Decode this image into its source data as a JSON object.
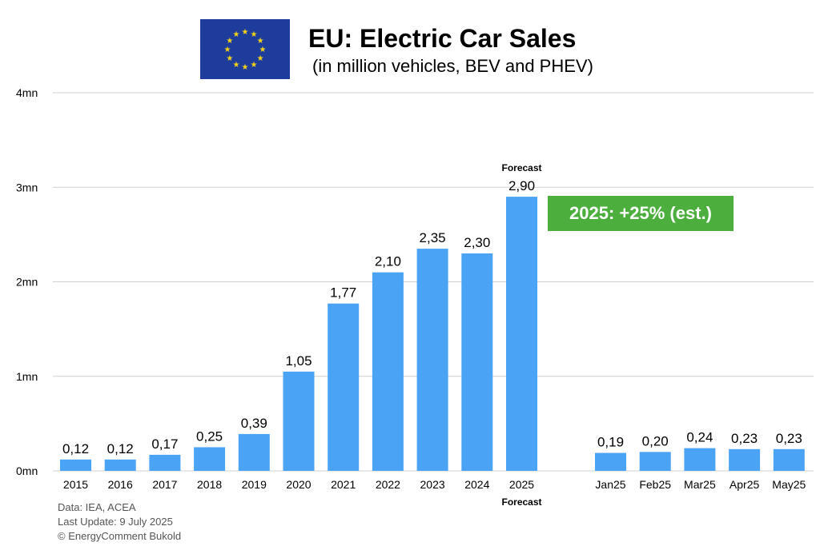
{
  "header": {
    "title": "EU: Electric Car Sales",
    "subtitle": "(in million vehicles, BEV and PHEV)"
  },
  "badge": {
    "text": "2025: +25% (est.)",
    "color": "#4caf3d"
  },
  "footer": {
    "source": "Data: IEA, ACEA",
    "updated": "Last Update: 9 July 2025",
    "copyright": "© EnergyComment Bukold"
  },
  "colors": {
    "bar": "#4aa3f5",
    "grid": "#d0d0d0",
    "flag_blue": "#1e3c9b",
    "flag_star": "#f3d21a"
  },
  "chart_data": {
    "type": "bar",
    "title": "EU: Electric Car Sales",
    "ylim": [
      0,
      4
    ],
    "yticks": [
      {
        "value": 0,
        "label": "0mn"
      },
      {
        "value": 1,
        "label": "1mn"
      },
      {
        "value": 2,
        "label": "2mn"
      },
      {
        "value": 3,
        "label": "3mn"
      },
      {
        "value": 4,
        "label": "4mn"
      }
    ],
    "groups": [
      {
        "name": "annual",
        "categories": [
          "2015",
          "2016",
          "2017",
          "2018",
          "2019",
          "2020",
          "2021",
          "2022",
          "2023",
          "2024",
          "2025"
        ],
        "values": [
          0.12,
          0.12,
          0.17,
          0.25,
          0.39,
          1.05,
          1.77,
          2.1,
          2.35,
          2.3,
          2.9
        ],
        "labels": [
          "0,12",
          "0,12",
          "0,17",
          "0,25",
          "0,39",
          "1,05",
          "1,77",
          "2,10",
          "2,35",
          "2,30",
          "2,90"
        ]
      },
      {
        "name": "monthly",
        "categories": [
          "Jan25",
          "Feb25",
          "Mar25",
          "Apr25",
          "May25"
        ],
        "values": [
          0.19,
          0.2,
          0.24,
          0.23,
          0.23
        ],
        "labels": [
          "0,19",
          "0,20",
          "0,24",
          "0,23",
          "0,23"
        ]
      }
    ],
    "annotations": [
      {
        "category": "2025",
        "position": "above",
        "text": "Forecast"
      },
      {
        "category": "2025",
        "position": "below",
        "text": "Forecast"
      }
    ]
  }
}
